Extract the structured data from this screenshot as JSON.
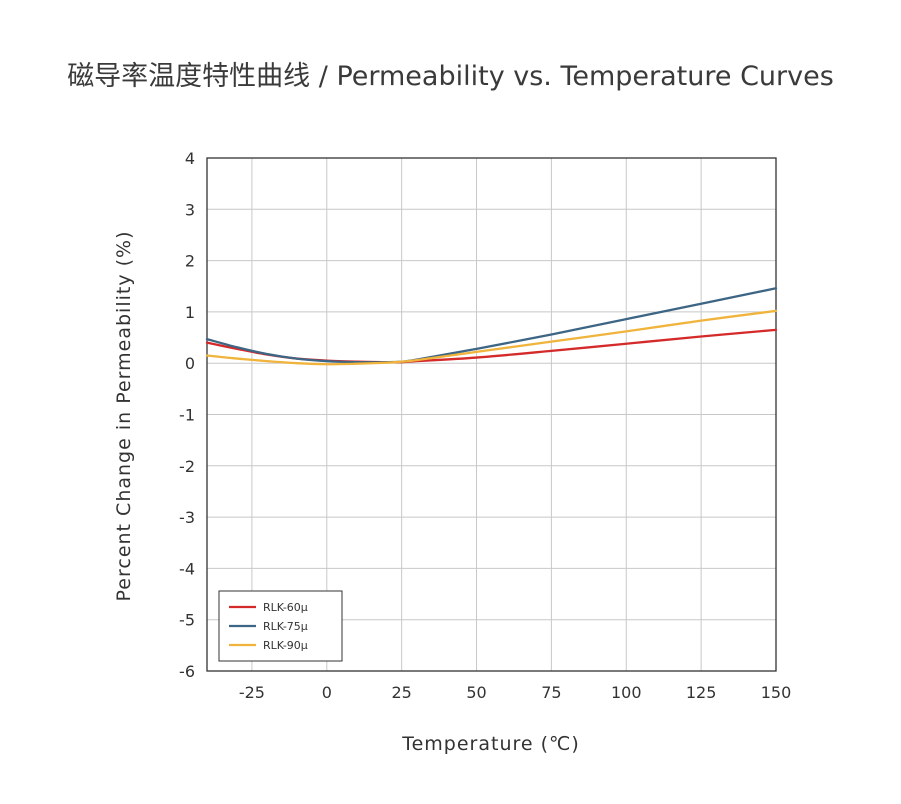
{
  "chart_data": {
    "type": "line",
    "title": "磁导率温度特性曲线 / Permeability vs. Temperature Curves",
    "xlabel": "Temperature (℃)",
    "ylabel": "Percent Change in Permeability (%)",
    "xlim": [
      -40,
      150
    ],
    "ylim": [
      -6,
      4
    ],
    "x_ticks": [
      -25,
      0,
      25,
      50,
      75,
      100,
      125,
      150
    ],
    "y_ticks": [
      4,
      3,
      2,
      1,
      0,
      -1,
      -2,
      -3,
      -4,
      -5,
      -6
    ],
    "x_tick_labels": [
      "-25",
      "0",
      "25",
      "50",
      "75",
      "100",
      "125",
      "150"
    ],
    "y_tick_labels": [
      "4",
      "3",
      "2",
      "1",
      "0",
      "-1",
      "-2",
      "-3",
      "-4",
      "-5",
      "-6"
    ],
    "grid": true,
    "legend_position": "bottom-left",
    "series": [
      {
        "name": "RLK-60μ",
        "color": "#d42a2a",
        "x": [
          -40,
          -30,
          -20,
          -10,
          0,
          10,
          20,
          25,
          30,
          50,
          75,
          100,
          125,
          150
        ],
        "y": [
          0.4,
          0.28,
          0.17,
          0.09,
          0.05,
          0.03,
          0.02,
          0.02,
          0.04,
          0.11,
          0.24,
          0.38,
          0.52,
          0.65
        ]
      },
      {
        "name": "RLK-75μ",
        "color": "#3d6584",
        "x": [
          -40,
          -30,
          -20,
          -10,
          0,
          10,
          20,
          25,
          30,
          50,
          75,
          100,
          125,
          150
        ],
        "y": [
          0.47,
          0.31,
          0.18,
          0.09,
          0.04,
          0.02,
          0.02,
          0.03,
          0.07,
          0.28,
          0.56,
          0.86,
          1.16,
          1.46
        ]
      },
      {
        "name": "RLK-90μ",
        "color": "#f0b43c",
        "x": [
          -40,
          -30,
          -20,
          -10,
          0,
          10,
          20,
          25,
          30,
          50,
          75,
          100,
          125,
          150
        ],
        "y": [
          0.15,
          0.09,
          0.04,
          0.0,
          -0.02,
          -0.01,
          0.01,
          0.03,
          0.06,
          0.22,
          0.42,
          0.62,
          0.83,
          1.02
        ]
      }
    ]
  }
}
